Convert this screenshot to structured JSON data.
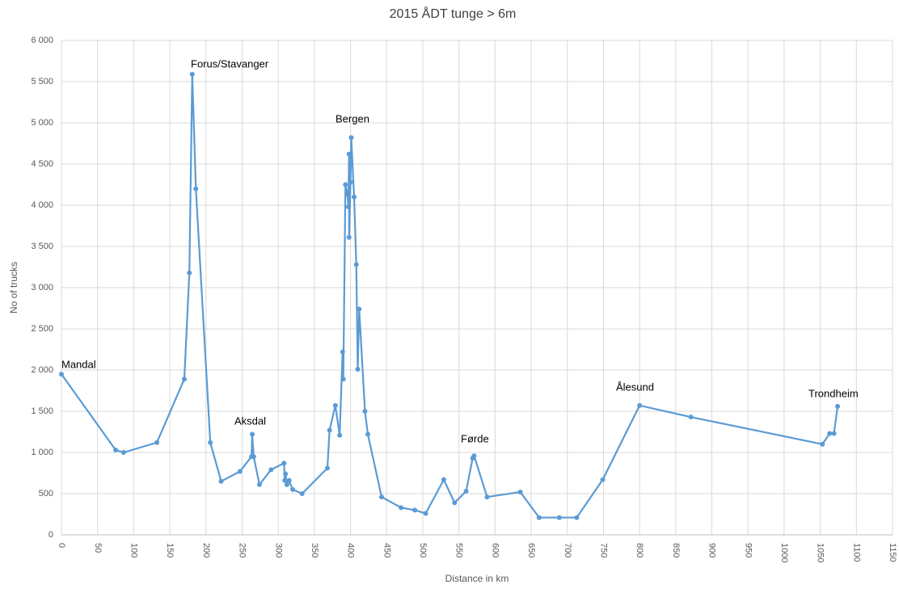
{
  "chart_data": {
    "type": "line",
    "title": "2015 ÅDT tunge > 6m",
    "x_label": "Distance in km",
    "y_label": "No of  trucks",
    "x": [
      0,
      75,
      86,
      132,
      170,
      177,
      181,
      186,
      206,
      221,
      247,
      263,
      264,
      266,
      274,
      290,
      308,
      309,
      310,
      312,
      315,
      320,
      333,
      368,
      371,
      379,
      385,
      389,
      390,
      393,
      396,
      397,
      398,
      398,
      400,
      401,
      405,
      408,
      410,
      412,
      420,
      424,
      443,
      470,
      489,
      504,
      529,
      544,
      560,
      569,
      571,
      589,
      635,
      661,
      689,
      713,
      749,
      800,
      871,
      1053,
      1063,
      1069,
      1074
    ],
    "series": [
      {
        "name": "No of  trucks",
        "color": "#5b9bd5",
        "values": [
          1950,
          1030,
          1000,
          1120,
          1890,
          3180,
          5590,
          4200,
          1120,
          650,
          770,
          950,
          1220,
          950,
          610,
          790,
          870,
          660,
          740,
          610,
          660,
          550,
          500,
          810,
          1270,
          1570,
          1210,
          2220,
          1890,
          4250,
          4130,
          3980,
          4620,
          3610,
          4280,
          4820,
          4100,
          3280,
          2010,
          2740,
          1500,
          1220,
          460,
          330,
          300,
          260,
          670,
          390,
          530,
          930,
          960,
          460,
          520,
          210,
          210,
          210,
          670,
          1570,
          1430,
          1100,
          1230,
          1230,
          1560
        ]
      }
    ],
    "annotations": [
      "Mandal",
      "Forus/Stavanger",
      "Aksdal",
      "Bergen",
      "Førde",
      "Ålesund",
      "Trondheim"
    ],
    "xlim": [
      0,
      1150
    ],
    "xticks": [
      0,
      50,
      100,
      150,
      200,
      250,
      300,
      350,
      400,
      450,
      500,
      550,
      600,
      650,
      700,
      750,
      800,
      850,
      900,
      950,
      1000,
      1050,
      1100,
      1150
    ],
    "ylim": [
      0,
      6000
    ],
    "yticks": [
      0,
      500,
      {
        "value": 1000,
        "label": "1 000"
      },
      {
        "value": 1500,
        "label": "1 500"
      },
      {
        "value": 2000,
        "label": "2 000"
      },
      {
        "value": 2500,
        "label": "2 500"
      },
      {
        "value": 3000,
        "label": "3 000"
      },
      {
        "value": 3500,
        "label": "3 500"
      },
      {
        "value": 4000,
        "label": "4 000"
      },
      {
        "value": 4500,
        "label": "4 500"
      },
      {
        "value": 5000,
        "label": "5 000"
      },
      {
        "value": 5500,
        "label": "5 500"
      },
      {
        "value": 6000,
        "label": "6 000"
      }
    ],
    "grid": true
  }
}
